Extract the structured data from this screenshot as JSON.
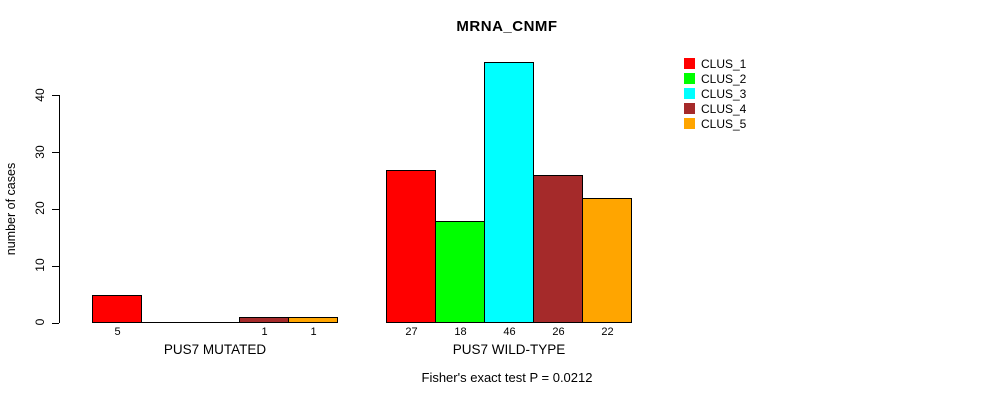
{
  "chart_data": {
    "type": "bar",
    "title": "MRNA_CNMF",
    "ylabel": "number of cases",
    "xlabel": "",
    "subtitle": "Fisher's exact test P = 0.0212",
    "ylim": [
      0,
      46
    ],
    "yticks": [
      0,
      10,
      20,
      30,
      40
    ],
    "grid": false,
    "legend_position": "top-right",
    "series": [
      {
        "name": "CLUS_1",
        "color": "#FF0000"
      },
      {
        "name": "CLUS_2",
        "color": "#00FF00"
      },
      {
        "name": "CLUS_3",
        "color": "#00FFFF"
      },
      {
        "name": "CLUS_4",
        "color": "#A52A2A"
      },
      {
        "name": "CLUS_5",
        "color": "#FFA500"
      }
    ],
    "groups": [
      {
        "label": "PUS7 MUTATED",
        "values": [
          5,
          0,
          0,
          1,
          1
        ],
        "bar_labels": [
          "5",
          "",
          "",
          "1",
          "1"
        ]
      },
      {
        "label": "PUS7 WILD-TYPE",
        "values": [
          27,
          18,
          46,
          26,
          22
        ],
        "bar_labels": [
          "27",
          "18",
          "46",
          "26",
          "22"
        ]
      }
    ]
  }
}
